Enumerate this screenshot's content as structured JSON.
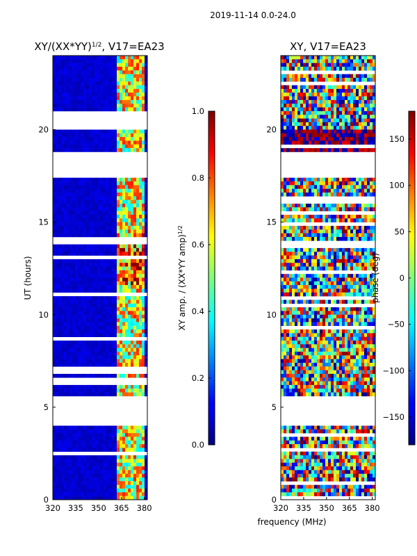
{
  "chart_data": {
    "type": "heatmap",
    "suptitle": "2019-11-14 0.0-24.0",
    "xlabel": "frequency (MHz)",
    "panels": [
      {
        "title_main": "XY/(XX*YY)",
        "title_sup": "1/2",
        "title_tail": ", V17=EA23",
        "ylabel": "UT (hours)",
        "xlim": [
          320,
          382
        ],
        "ylim": [
          0,
          24
        ],
        "xticks": [
          320,
          335,
          350,
          365,
          380
        ],
        "yticks": [
          0,
          5,
          10,
          15,
          20
        ],
        "colorbar": {
          "label_main": "XY amp. / (XX*YY amp)",
          "label_sup": "1/2",
          "range": [
            0.0,
            1.0
          ],
          "ticks": [
            0.0,
            0.2,
            0.4,
            0.6,
            0.8,
            1.0
          ],
          "tick_labels": [
            "0.0",
            "0.2",
            "0.4",
            "0.6",
            "0.8",
            "1.0"
          ]
        },
        "active_band_mhz": [
          362,
          380
        ],
        "gaps_ut": [
          [
            17.4,
            18.8
          ],
          [
            20.0,
            21.0
          ],
          [
            5.7,
            4.0
          ]
        ],
        "band_levels": [
          0.05,
          0.45,
          0.65,
          0.85
        ]
      },
      {
        "title_main": "XY, V17=EA23",
        "title_sup": "",
        "title_tail": "",
        "ylabel": "",
        "xlim": [
          320,
          382
        ],
        "ylim": [
          0,
          24
        ],
        "xticks": [
          320,
          335,
          350,
          365,
          380
        ],
        "yticks": [
          0,
          5,
          10,
          15,
          20
        ],
        "colorbar": {
          "label_main": "phase (deg)",
          "label_sup": "",
          "range": [
            -180,
            180
          ],
          "ticks": [
            150,
            100,
            50,
            0,
            -50,
            -100,
            -150
          ],
          "tick_labels": [
            "150",
            "100",
            "50",
            "0",
            "−50",
            "−100",
            "−150"
          ]
        },
        "gaps_ut": [
          [
            17.4,
            18.8
          ],
          [
            5.7,
            4.0
          ]
        ],
        "phase_levels": [
          -180,
          -120,
          -60,
          0,
          60,
          120,
          180
        ]
      }
    ]
  }
}
